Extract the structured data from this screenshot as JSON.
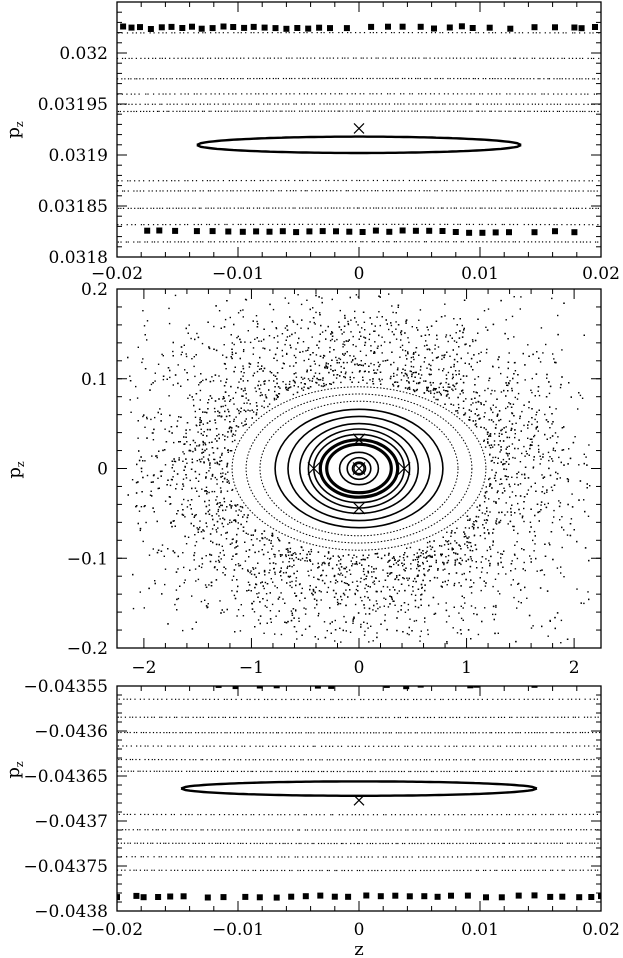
{
  "chart_data": [
    {
      "type": "scatter",
      "panel": "top",
      "title": "",
      "xlabel": "",
      "ylabel": "p",
      "ylabel_sub": "z",
      "xlim": [
        -0.02,
        0.02
      ],
      "ylim": [
        0.0318,
        0.03205
      ],
      "xticks": [
        -0.02,
        -0.01,
        0,
        0.01,
        0.02
      ],
      "xtick_labels": [
        "−0.02",
        "−0.01",
        "0",
        "0.01",
        "0.02"
      ],
      "yticks": [
        0.0318,
        0.03185,
        0.0319,
        0.03195,
        0.032
      ],
      "ytick_labels": [
        "0.0318",
        "0.03185",
        "0.0319",
        "0.03195",
        "0.032"
      ],
      "grid": false,
      "marker": {
        "x": 0.0,
        "y": 0.031926,
        "symbol": "cross"
      },
      "island": {
        "x_half_width": 0.0134,
        "y_center": 0.03191,
        "y_half_width": 8e-06,
        "curvature": 1.7e-07
      },
      "curves_center_y": [
        0.03202,
        0.031995,
        0.031975,
        0.03196,
        0.03195,
        0.031943,
        0.031875,
        0.031865,
        0.031848,
        0.031832,
        0.031815
      ],
      "curves_curvature": 3.5e-07,
      "square_rows": [
        {
          "y0": 0.032025,
          "x": [
            -0.0195,
            -0.0188,
            -0.0181,
            -0.0172,
            -0.0163,
            -0.0155,
            -0.0146,
            -0.0138,
            -0.013,
            -0.0121,
            -0.0112,
            -0.0104,
            -0.0095,
            -0.0087,
            -0.0078,
            -0.0069,
            -0.006,
            -0.0051,
            -0.0042,
            -0.0033,
            -0.0024,
            -0.001,
            0.001,
            0.0024,
            0.0036,
            0.0051,
            0.0062,
            0.0075,
            0.0085,
            0.0094,
            0.0108,
            0.0125,
            0.0145,
            0.0162,
            0.0178,
            0.0184,
            0.0195
          ]
        },
        {
          "y0": 0.031825,
          "x": [
            -0.0175,
            -0.0165,
            -0.0152,
            -0.0134,
            -0.0121,
            -0.0108,
            -0.0096,
            -0.0085,
            -0.0074,
            -0.0063,
            -0.0052,
            -0.0041,
            -0.003,
            -0.0019,
            -0.0008,
            0.0003,
            0.0014,
            0.0025,
            0.0036,
            0.0047,
            0.0058,
            0.0069,
            0.008,
            0.0091,
            0.0102,
            0.0113,
            0.0124,
            0.0145,
            0.0162,
            0.0178
          ]
        }
      ]
    },
    {
      "type": "scatter",
      "panel": "middle",
      "title": "",
      "xlabel": "",
      "ylabel": "p",
      "ylabel_sub": "z",
      "xlim": [
        -2.25,
        2.25
      ],
      "ylim": [
        -0.2,
        0.2
      ],
      "xticks": [
        -2,
        -1,
        0,
        1,
        2
      ],
      "xtick_labels": [
        "−2",
        "−1",
        "0",
        "1",
        "2"
      ],
      "yticks": [
        -0.2,
        -0.1,
        0,
        0.1,
        0.2
      ],
      "ytick_labels": [
        "−0.2",
        "−0.1",
        "0",
        "0.1",
        "0.2"
      ],
      "grid": false,
      "markers": [
        {
          "x": 0.0,
          "y": 0.032,
          "symbol": "cross"
        },
        {
          "x": 0.0,
          "y": -0.044,
          "symbol": "cross"
        },
        {
          "x": 0.0,
          "y": 0.0,
          "symbol": "circle-cross"
        },
        {
          "x": -0.42,
          "y": 0.0,
          "symbol": "cross"
        },
        {
          "x": 0.42,
          "y": 0.0,
          "symbol": "cross"
        }
      ],
      "ellipse_semi_axes": [
        {
          "a": 0.06,
          "b": 0.007
        },
        {
          "a": 0.11,
          "b": 0.012
        },
        {
          "a": 0.18,
          "b": 0.018
        },
        {
          "a": 0.3,
          "b": 0.027
        },
        {
          "a": 0.36,
          "b": 0.032
        },
        {
          "a": 0.42,
          "b": 0.038
        },
        {
          "a": 0.47,
          "b": 0.044
        },
        {
          "a": 0.55,
          "b": 0.05
        },
        {
          "a": 0.66,
          "b": 0.058
        },
        {
          "a": 0.78,
          "b": 0.066
        },
        {
          "a": 0.92,
          "b": 0.075
        },
        {
          "a": 1.05,
          "b": 0.083
        },
        {
          "a": 1.18,
          "b": 0.091
        }
      ],
      "chaotic_sea": {
        "x_range": [
          -2.15,
          2.15
        ],
        "y_range": [
          -0.195,
          0.195
        ],
        "points": 4200
      }
    },
    {
      "type": "scatter",
      "panel": "bottom",
      "title": "",
      "xlabel": "z",
      "ylabel": "p",
      "ylabel_sub": "z",
      "xlim": [
        -0.02,
        0.02
      ],
      "ylim": [
        -0.0438,
        -0.04355
      ],
      "xticks": [
        -0.02,
        -0.01,
        0,
        0.01,
        0.02
      ],
      "xtick_labels": [
        "−0.02",
        "−0.01",
        "0",
        "0.01",
        "0.02"
      ],
      "yticks": [
        -0.0438,
        -0.04375,
        -0.0437,
        -0.04365,
        -0.0436,
        -0.04355
      ],
      "ytick_labels": [
        "−0.0438",
        "−0.04375",
        "−0.0437",
        "−0.04365",
        "−0.0436",
        "−0.04355"
      ],
      "grid": false,
      "marker": {
        "x": 0.0,
        "y": -0.043677,
        "symbol": "cross"
      },
      "island": {
        "x_half_width": 0.0147,
        "y_center": -0.043664,
        "y_half_width": 8e-06,
        "curvature": -1.5e-07
      },
      "curves_center_y": [
        -0.043565,
        -0.043585,
        -0.043602,
        -0.043617,
        -0.043632,
        -0.043645,
        -0.043693,
        -0.04371,
        -0.043725,
        -0.04374,
        -0.043755
      ],
      "curves_curvature": -3.5e-07,
      "square_rows": [
        {
          "y0": -0.043549,
          "x": [
            -0.0116,
            -0.0102,
            -0.0082,
            -0.0068,
            -0.0034,
            -0.0023,
            0.0023,
            0.0039,
            0.0051,
            0.0092,
            0.0097,
            0.0145
          ]
        },
        {
          "y0": -0.043784,
          "x": [
            -0.02,
            -0.0184,
            -0.0178,
            -0.0166,
            -0.0156,
            -0.0145,
            -0.0125,
            -0.0112,
            -0.0094,
            -0.0082,
            -0.0068,
            -0.0056,
            -0.0044,
            -0.0032,
            -0.002,
            -0.0009,
            0.0006,
            0.0018,
            0.003,
            0.0042,
            0.0054,
            0.0065,
            0.0076,
            0.009,
            0.0105,
            0.0118,
            0.0132,
            0.0145,
            0.0158,
            0.0168,
            0.0182,
            0.0192,
            0.02
          ]
        }
      ]
    }
  ]
}
